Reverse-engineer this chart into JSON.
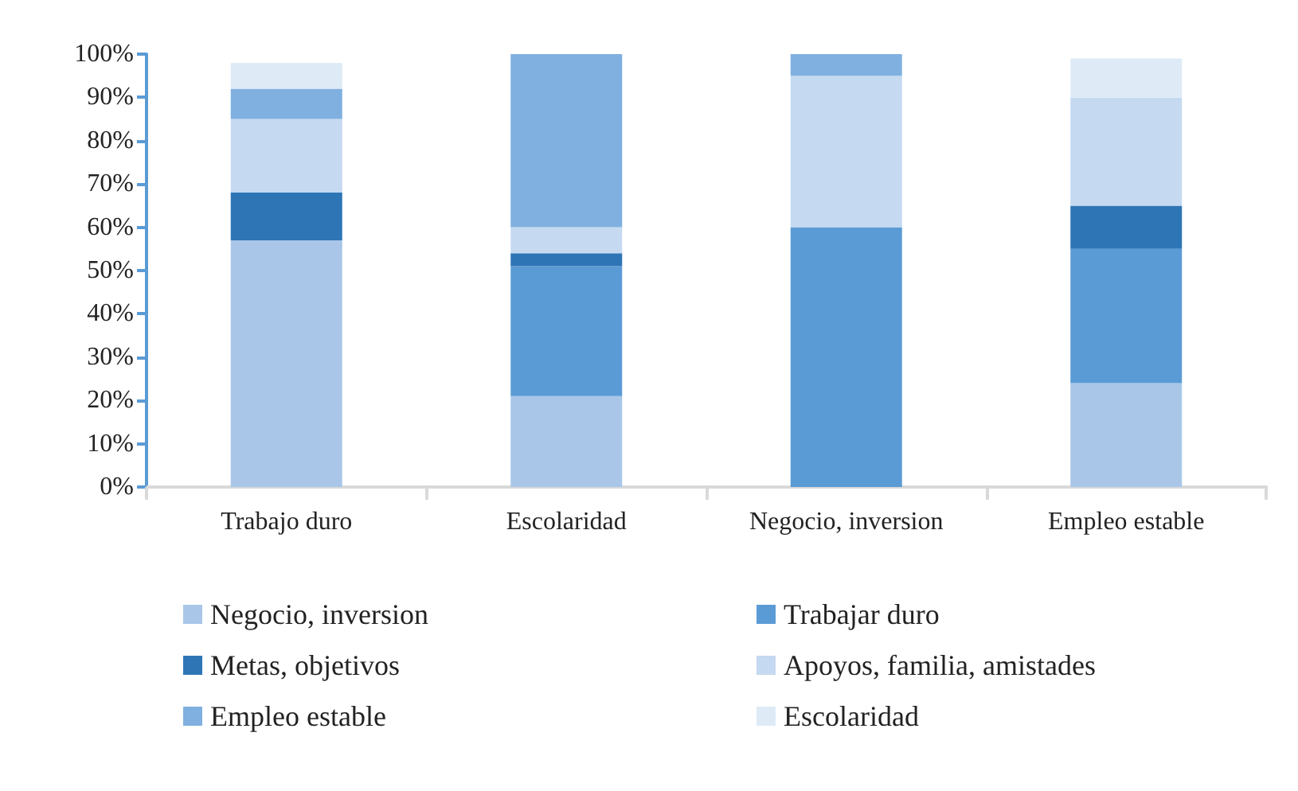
{
  "chart_data": {
    "type": "bar",
    "stacked": true,
    "categories": [
      "Trabajo duro",
      "Escolaridad",
      "Negocio, inversion",
      "Empleo estable"
    ],
    "series": [
      {
        "name": "Negocio, inversion",
        "color": "#a9c6e8",
        "values": [
          57,
          21,
          0,
          24
        ]
      },
      {
        "name": "Trabajar duro",
        "color": "#5b9bd5",
        "values": [
          0,
          30,
          60,
          31
        ]
      },
      {
        "name": "Metas, objetivos",
        "color": "#2e75b6",
        "values": [
          11,
          3,
          0,
          10
        ]
      },
      {
        "name": "Apoyos, familia, amistades",
        "color": "#c5d9f0",
        "values": [
          17,
          6,
          35,
          25
        ]
      },
      {
        "name": "Empleo estable",
        "color": "#7fb0e0",
        "values": [
          7,
          40,
          5,
          0
        ]
      },
      {
        "name": "Escolaridad",
        "color": "#deebf7",
        "values": [
          6,
          0,
          0,
          9
        ]
      }
    ],
    "ylim": [
      0,
      100
    ],
    "yticks": [
      {
        "value": 0,
        "label": "0%"
      },
      {
        "value": 10,
        "label": "10%"
      },
      {
        "value": 20,
        "label": "20%"
      },
      {
        "value": 30,
        "label": "30%"
      },
      {
        "value": 40,
        "label": "40%"
      },
      {
        "value": 50,
        "label": "50%"
      },
      {
        "value": 60,
        "label": "60%"
      },
      {
        "value": 70,
        "label": "70%"
      },
      {
        "value": 80,
        "label": "80%"
      },
      {
        "value": 90,
        "label": "90%"
      },
      {
        "value": 100,
        "label": "100%"
      }
    ],
    "grid": false,
    "legend": "bottom"
  }
}
